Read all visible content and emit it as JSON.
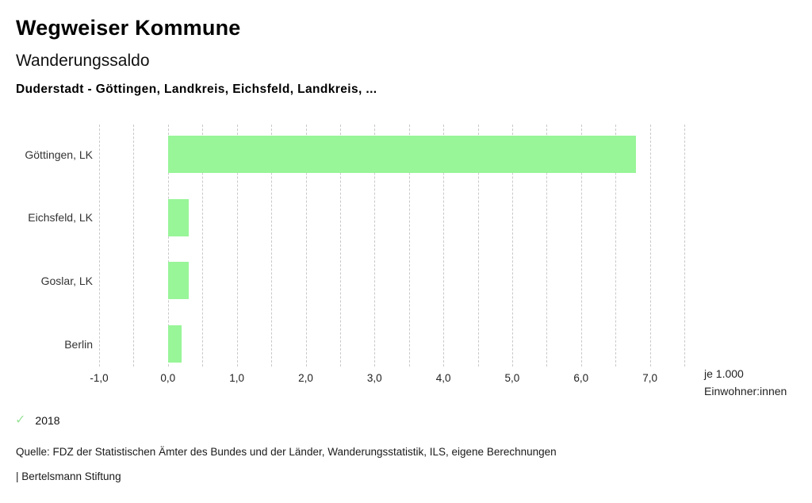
{
  "header": {
    "app_title": "Wegweiser Kommune",
    "chart_title": "Wanderungssaldo",
    "location_line": "Duderstadt - Göttingen, Landkreis, Eichsfeld, Landkreis, ..."
  },
  "chart_data": {
    "type": "bar",
    "orientation": "horizontal",
    "title": "Wanderungssaldo",
    "subtitle": "Duderstadt - Göttingen, Landkreis, Eichsfeld, Landkreis, ...",
    "categories": [
      "Göttingen, LK",
      "Eichsfeld, LK",
      "Goslar, LK",
      "Berlin"
    ],
    "values": [
      6.8,
      0.3,
      0.3,
      0.2
    ],
    "series_name": "2018",
    "xlim": [
      -1.0,
      7.5
    ],
    "gridline_step": 0.5,
    "grid": true,
    "x_ticks": [
      -1,
      0,
      1,
      2,
      3,
      4,
      5,
      6,
      7
    ],
    "x_tick_labels": [
      "-1,0",
      "0,0",
      "1,0",
      "2,0",
      "3,0",
      "4,0",
      "5,0",
      "6,0",
      "7,0"
    ],
    "xlabel_line1": "je 1.000",
    "xlabel_line2": "Einwohner:innen",
    "legend_position": "bottom-left"
  },
  "legend": {
    "check_icon": "✓",
    "year": "2018"
  },
  "footer": {
    "source": "Quelle: FDZ der Statistischen Ämter des Bundes und der Länder, Wanderungsstatistik, ILS, eigene Berechnungen",
    "branding": "| Bertelsmann Stiftung"
  },
  "colors": {
    "bar": "#98f598",
    "check": "#9ce49c",
    "gridline": "#c9c9c9"
  }
}
